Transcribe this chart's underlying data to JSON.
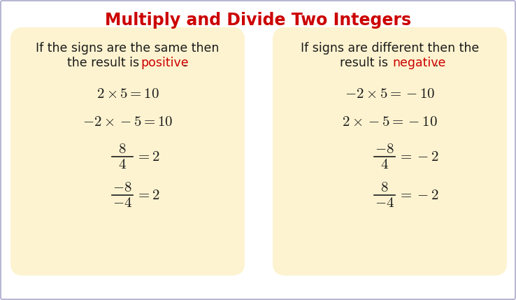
{
  "title": "Multiply and Divide Two Integers",
  "title_color": "#cc0000",
  "title_fontsize": 17,
  "bg_color": "#ffffff",
  "box_color": "#fdf3d0",
  "text_color": "#1a1a1a",
  "eq_fontsize": 15,
  "header_fontsize": 12.5,
  "left_line1": "If the signs are the same then",
  "left_line2_black": "the result is ",
  "left_line2_red": "positive",
  "right_line1": "If signs are different then the",
  "right_line2_black": "result is ",
  "right_line2_red": "negative",
  "left_normal_eqs": [
    "$2\\times5=10$",
    "$-2\\times-5=10$"
  ],
  "right_normal_eqs": [
    "$-2\\times5=-10$",
    "$2\\times-5=-10$"
  ],
  "left_fracs": [
    {
      "num": "$8$",
      "den": "$4$",
      "res": "$=2$"
    },
    {
      "num": "$-8$",
      "den": "$-4$",
      "res": "$=2$"
    }
  ],
  "right_fracs": [
    {
      "num": "$-8$",
      "den": "$4$",
      "res": "$=-2$"
    },
    {
      "num": "$8$",
      "den": "$-4$",
      "res": "$=-2$"
    }
  ]
}
